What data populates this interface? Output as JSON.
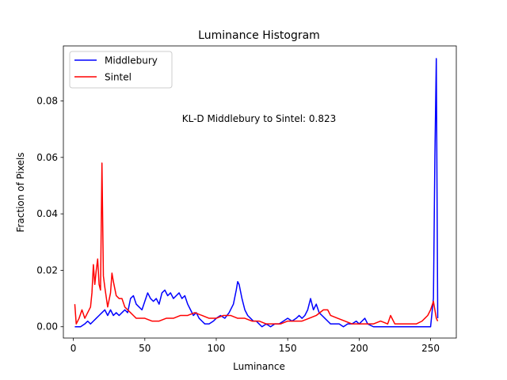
{
  "chart_data": {
    "type": "line",
    "title": "Luminance Histogram",
    "xlabel": "Luminance",
    "ylabel": "Fraction of Pixels",
    "xlim": [
      -7,
      268
    ],
    "ylim": [
      -0.004,
      0.0995
    ],
    "xticks": [
      0,
      50,
      100,
      150,
      200,
      250
    ],
    "yticks": [
      0.0,
      0.02,
      0.04,
      0.06,
      0.08
    ],
    "ytick_labels": [
      "0.00",
      "0.02",
      "0.04",
      "0.06",
      "0.08"
    ],
    "grid": false,
    "legend_position": "top-left",
    "annotation": "KL-D Middlebury to Sintel: 0.823",
    "series": [
      {
        "name": "Middlebury",
        "color": "#0000ff",
        "x": [
          1,
          5,
          8,
          10,
          12,
          14,
          16,
          18,
          20,
          22,
          24,
          26,
          28,
          30,
          32,
          34,
          36,
          38,
          40,
          42,
          44,
          46,
          48,
          50,
          52,
          54,
          56,
          58,
          60,
          62,
          64,
          66,
          68,
          70,
          72,
          74,
          76,
          78,
          80,
          82,
          84,
          86,
          88,
          90,
          92,
          95,
          98,
          100,
          103,
          106,
          109,
          112,
          114,
          115,
          116,
          118,
          120,
          122,
          124,
          126,
          128,
          130,
          132,
          135,
          138,
          141,
          144,
          147,
          150,
          153,
          156,
          158,
          160,
          162,
          164,
          166,
          168,
          170,
          172,
          174,
          176,
          178,
          180,
          183,
          186,
          189,
          192,
          195,
          198,
          200,
          202,
          204,
          206,
          210,
          215,
          220,
          225,
          230,
          235,
          240,
          245,
          250,
          252,
          253,
          254,
          255
        ],
        "y": [
          0.0,
          0.0,
          0.001,
          0.002,
          0.001,
          0.002,
          0.003,
          0.004,
          0.005,
          0.006,
          0.004,
          0.006,
          0.004,
          0.005,
          0.004,
          0.005,
          0.006,
          0.005,
          0.01,
          0.011,
          0.008,
          0.007,
          0.006,
          0.009,
          0.012,
          0.01,
          0.009,
          0.01,
          0.008,
          0.012,
          0.013,
          0.011,
          0.012,
          0.01,
          0.011,
          0.012,
          0.01,
          0.011,
          0.008,
          0.006,
          0.004,
          0.005,
          0.003,
          0.002,
          0.001,
          0.001,
          0.002,
          0.003,
          0.004,
          0.003,
          0.005,
          0.008,
          0.013,
          0.016,
          0.015,
          0.01,
          0.006,
          0.004,
          0.003,
          0.002,
          0.002,
          0.001,
          0.0,
          0.001,
          0.0,
          0.001,
          0.001,
          0.002,
          0.003,
          0.002,
          0.003,
          0.004,
          0.003,
          0.004,
          0.006,
          0.01,
          0.006,
          0.008,
          0.005,
          0.004,
          0.003,
          0.002,
          0.001,
          0.001,
          0.001,
          0.0,
          0.001,
          0.001,
          0.002,
          0.001,
          0.002,
          0.003,
          0.001,
          0.0,
          0.0,
          0.0,
          0.0,
          0.0,
          0.0,
          0.0,
          0.0,
          0.0,
          0.01,
          0.06,
          0.095,
          0.003
        ]
      },
      {
        "name": "Sintel",
        "color": "#ff0000",
        "x": [
          1,
          2,
          4,
          6,
          8,
          10,
          12,
          13,
          14,
          15,
          16,
          17,
          18,
          19,
          20,
          21,
          22,
          24,
          26,
          27,
          28,
          30,
          32,
          34,
          36,
          38,
          40,
          42,
          44,
          46,
          48,
          50,
          55,
          60,
          65,
          70,
          75,
          80,
          85,
          90,
          95,
          100,
          105,
          110,
          115,
          120,
          125,
          130,
          135,
          140,
          145,
          150,
          155,
          160,
          165,
          170,
          175,
          178,
          180,
          185,
          190,
          195,
          200,
          205,
          210,
          215,
          220,
          222,
          225,
          230,
          235,
          240,
          244,
          246,
          248,
          250,
          252,
          254,
          255
        ],
        "y": [
          0.008,
          0.001,
          0.003,
          0.006,
          0.003,
          0.005,
          0.007,
          0.012,
          0.022,
          0.015,
          0.02,
          0.024,
          0.015,
          0.013,
          0.058,
          0.018,
          0.014,
          0.007,
          0.012,
          0.019,
          0.016,
          0.011,
          0.01,
          0.01,
          0.007,
          0.006,
          0.005,
          0.004,
          0.003,
          0.003,
          0.003,
          0.003,
          0.002,
          0.002,
          0.003,
          0.003,
          0.004,
          0.004,
          0.005,
          0.004,
          0.003,
          0.003,
          0.004,
          0.004,
          0.003,
          0.003,
          0.002,
          0.002,
          0.001,
          0.001,
          0.001,
          0.002,
          0.002,
          0.002,
          0.003,
          0.004,
          0.006,
          0.006,
          0.004,
          0.003,
          0.002,
          0.001,
          0.001,
          0.001,
          0.001,
          0.002,
          0.001,
          0.004,
          0.001,
          0.001,
          0.001,
          0.001,
          0.002,
          0.003,
          0.004,
          0.006,
          0.009,
          0.003,
          0.002
        ]
      }
    ]
  }
}
